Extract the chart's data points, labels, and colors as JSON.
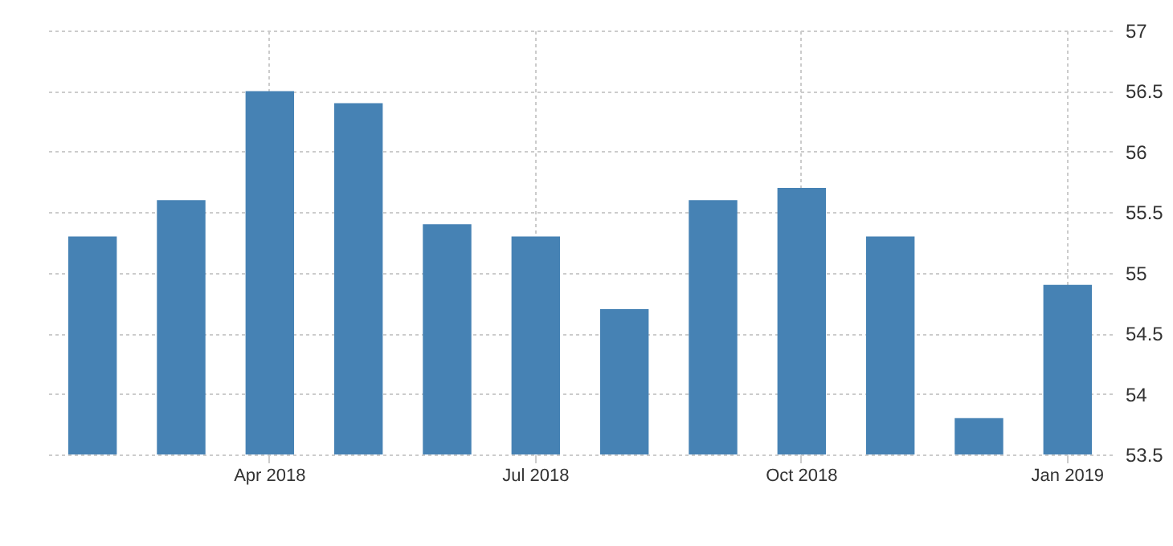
{
  "chart_data": {
    "type": "bar",
    "categories": [
      null,
      null,
      "Apr 2018",
      null,
      null,
      "Jul 2018",
      null,
      null,
      "Oct 2018",
      null,
      null,
      "Jan 2019"
    ],
    "values": [
      55.3,
      55.6,
      56.5,
      56.4,
      55.4,
      55.3,
      54.7,
      55.6,
      55.7,
      55.3,
      53.8,
      54.9
    ],
    "color": "#4682b4",
    "ylim": [
      53.5,
      57
    ],
    "yticks": [
      53.5,
      54,
      54.5,
      55,
      55.5,
      56,
      56.5,
      57
    ],
    "grid": true
  }
}
